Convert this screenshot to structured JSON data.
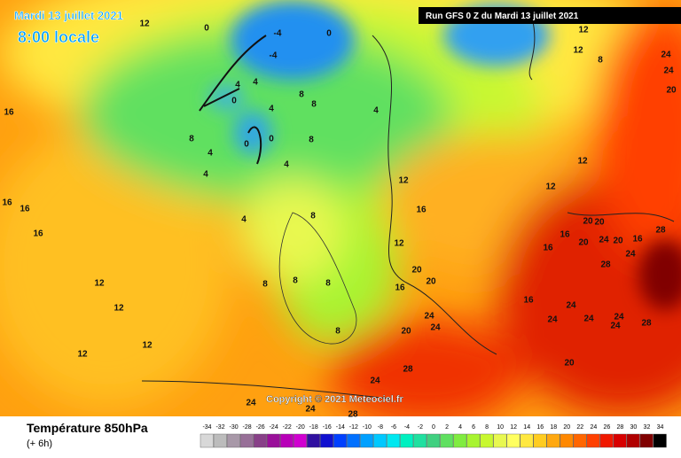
{
  "header": {
    "date": "Mardi 13 juillet 2021",
    "time": "8:00 locale",
    "run": "Run GFS 0 Z du Mardi 13 juillet 2021"
  },
  "copyright": "Copyright © 2021 Meteociel.fr",
  "footer": {
    "title": "Température 850hPa",
    "step": "(+ 6h)"
  },
  "scale": {
    "values": [
      -34,
      -32,
      -30,
      -28,
      -26,
      -24,
      -22,
      -20,
      -18,
      -16,
      -14,
      -12,
      -10,
      -8,
      -6,
      -4,
      -2,
      0,
      2,
      4,
      6,
      8,
      10,
      12,
      14,
      16,
      18,
      20,
      22,
      24,
      26,
      28,
      30,
      32,
      34
    ],
    "colors": [
      "#d8d8d8",
      "#bcbcbc",
      "#a898a8",
      "#987098",
      "#884088",
      "#9a109a",
      "#b800b8",
      "#d000d0",
      "#3010a0",
      "#1010d0",
      "#0040ff",
      "#0070ff",
      "#00a0ff",
      "#00c8ff",
      "#00e8f0",
      "#00f0c0",
      "#20e0a0",
      "#40d080",
      "#60e060",
      "#80ec40",
      "#a8f430",
      "#c8f830",
      "#e8f850",
      "#ffff60",
      "#ffe840",
      "#ffcc20",
      "#ffa810",
      "#ff8800",
      "#ff6600",
      "#ff4000",
      "#f01800",
      "#d80000",
      "#b00000",
      "#800000",
      "#000000"
    ]
  },
  "contour_labels": [
    12,
    0,
    -4,
    0,
    12,
    12,
    8,
    24,
    24,
    20,
    -4,
    4,
    4,
    0,
    4,
    8,
    8,
    4,
    16,
    8,
    4,
    0,
    0,
    8,
    4,
    4,
    12,
    12,
    12,
    16,
    16,
    16,
    4,
    8,
    12,
    16,
    20,
    20,
    16,
    16,
    20,
    24,
    20,
    16,
    28,
    24,
    28,
    12,
    12,
    8,
    8,
    8,
    16,
    20,
    20,
    12,
    12,
    24,
    24,
    20,
    8,
    24,
    24,
    24,
    24,
    28,
    24,
    16,
    20,
    28,
    24,
    24,
    24,
    28
  ]
}
